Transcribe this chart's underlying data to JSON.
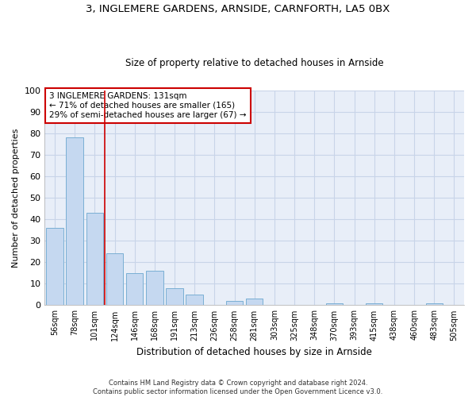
{
  "title1": "3, INGLEMERE GARDENS, ARNSIDE, CARNFORTH, LA5 0BX",
  "title2": "Size of property relative to detached houses in Arnside",
  "xlabel": "Distribution of detached houses by size in Arnside",
  "ylabel": "Number of detached properties",
  "categories": [
    "56sqm",
    "78sqm",
    "101sqm",
    "124sqm",
    "146sqm",
    "168sqm",
    "191sqm",
    "213sqm",
    "236sqm",
    "258sqm",
    "281sqm",
    "303sqm",
    "325sqm",
    "348sqm",
    "370sqm",
    "393sqm",
    "415sqm",
    "438sqm",
    "460sqm",
    "483sqm",
    "505sqm"
  ],
  "values": [
    36,
    78,
    43,
    24,
    15,
    16,
    8,
    5,
    0,
    2,
    3,
    0,
    0,
    0,
    1,
    0,
    1,
    0,
    0,
    1,
    0
  ],
  "bar_color": "#c5d8f0",
  "bar_edge_color": "#7aafd4",
  "grid_color": "#c8d4e8",
  "background_color": "#e8eef8",
  "vline_color": "#cc0000",
  "annotation_text": "3 INGLEMERE GARDENS: 131sqm\n← 71% of detached houses are smaller (165)\n29% of semi-detached houses are larger (67) →",
  "annotation_box_color": "#ffffff",
  "annotation_box_edge": "#cc0000",
  "footnote1": "Contains HM Land Registry data © Crown copyright and database right 2024.",
  "footnote2": "Contains public sector information licensed under the Open Government Licence v3.0.",
  "ylim": [
    0,
    100
  ],
  "yticks": [
    0,
    10,
    20,
    30,
    40,
    50,
    60,
    70,
    80,
    90,
    100
  ]
}
